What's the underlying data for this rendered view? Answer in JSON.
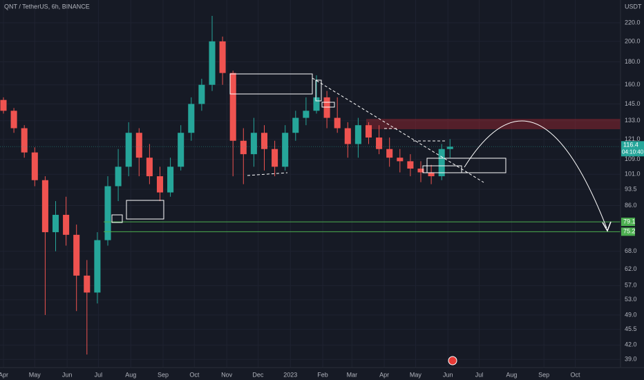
{
  "chart_data": {
    "type": "candlestick",
    "title": "QNT / TetherUS, 6h, BINANCE",
    "unit": "USDT",
    "log_scale": true,
    "grid": true,
    "up_color": "#26a69a",
    "down_color": "#ef5350",
    "x": [
      0,
      10,
      20,
      30,
      40,
      50,
      60,
      70,
      80,
      90,
      100,
      110,
      120,
      130,
      140,
      150,
      160,
      170,
      180,
      190,
      200,
      210,
      220,
      230,
      240,
      250,
      260,
      270,
      280,
      290,
      300,
      310,
      320,
      330,
      340,
      350,
      360,
      370,
      380,
      390,
      400,
      410,
      420,
      428
    ],
    "open": [
      148,
      140,
      128,
      113,
      98,
      75,
      82,
      74,
      60,
      55,
      72,
      95,
      105,
      125,
      110,
      100,
      92,
      105,
      125,
      145,
      160,
      200,
      170,
      120,
      112,
      125,
      115,
      105,
      125,
      135,
      140,
      150,
      135,
      128,
      118,
      130,
      122,
      115,
      110,
      108,
      104,
      102,
      100,
      115
    ],
    "high": [
      150,
      142,
      130,
      116,
      100,
      88,
      90,
      78,
      65,
      75,
      100,
      115,
      132,
      128,
      118,
      105,
      110,
      130,
      150,
      165,
      228,
      205,
      172,
      128,
      135,
      130,
      120,
      130,
      140,
      150,
      168,
      155,
      150,
      132,
      135,
      132,
      130,
      122,
      115,
      112,
      108,
      106,
      118,
      121
    ],
    "low": [
      138,
      125,
      110,
      95,
      49,
      68,
      70,
      50,
      40,
      52,
      70,
      88,
      100,
      100,
      96,
      88,
      90,
      103,
      120,
      140,
      155,
      160,
      100,
      96,
      105,
      103,
      100,
      103,
      120,
      130,
      138,
      128,
      125,
      110,
      110,
      118,
      112,
      105,
      102,
      100,
      97,
      96,
      98,
      110
    ],
    "close": [
      140,
      128,
      113,
      98,
      75,
      82,
      74,
      60,
      55,
      72,
      95,
      105,
      125,
      110,
      100,
      92,
      105,
      125,
      145,
      160,
      200,
      170,
      120,
      112,
      125,
      115,
      105,
      125,
      135,
      140,
      150,
      135,
      128,
      118,
      130,
      122,
      115,
      110,
      108,
      104,
      102,
      100,
      115,
      116.4
    ],
    "xlim": [
      -3.31,
      591.4
    ],
    "xticks": [
      {
        "value": 0,
        "label": "Apr"
      },
      {
        "value": 30,
        "label": "May"
      },
      {
        "value": 61,
        "label": "Jun"
      },
      {
        "value": 91,
        "label": "Jul"
      },
      {
        "value": 122,
        "label": "Aug"
      },
      {
        "value": 153,
        "label": "Sep"
      },
      {
        "value": 183,
        "label": "Oct"
      },
      {
        "value": 214,
        "label": "Nov"
      },
      {
        "value": 244,
        "label": "Dec"
      },
      {
        "value": 275,
        "label": "2023"
      },
      {
        "value": 306,
        "label": "Feb"
      },
      {
        "value": 334,
        "label": "Mar"
      },
      {
        "value": 365,
        "label": "Apr"
      },
      {
        "value": 395,
        "label": "May"
      },
      {
        "value": 426,
        "label": "Jun"
      },
      {
        "value": 456,
        "label": "Jul"
      },
      {
        "value": 487,
        "label": "Aug"
      },
      {
        "value": 518,
        "label": "Sep"
      },
      {
        "value": 548,
        "label": "Oct"
      }
    ],
    "ylim": [
      37.4,
      247.4
    ],
    "yticks": [
      {
        "value": 220,
        "label": "220.0"
      },
      {
        "value": 200,
        "label": "200.0"
      },
      {
        "value": 180,
        "label": "180.0"
      },
      {
        "value": 160,
        "label": "160.0"
      },
      {
        "value": 145,
        "label": "145.0"
      },
      {
        "value": 133,
        "label": "133.0"
      },
      {
        "value": 121,
        "label": "121.0"
      },
      {
        "value": 109,
        "label": "109.0"
      },
      {
        "value": 101,
        "label": "101.0"
      },
      93.5,
      {
        "value": 86,
        "label": "86.0"
      },
      {
        "value": 68,
        "label": "68.0"
      },
      {
        "value": 62,
        "label": "62.0"
      },
      {
        "value": 57,
        "label": "57.0"
      },
      {
        "value": 53,
        "label": "53.0"
      },
      {
        "value": 49,
        "label": "49.0"
      },
      45.5,
      {
        "value": 42,
        "label": "42.0"
      },
      {
        "value": 39,
        "label": "39.0"
      }
    ],
    "levels": [
      {
        "value": 79.1,
        "color": "#4caf50"
      },
      {
        "value": 75.2,
        "color": "#4caf50"
      }
    ],
    "last_price": 116.4,
    "countdown": "04:10:40"
  }
}
